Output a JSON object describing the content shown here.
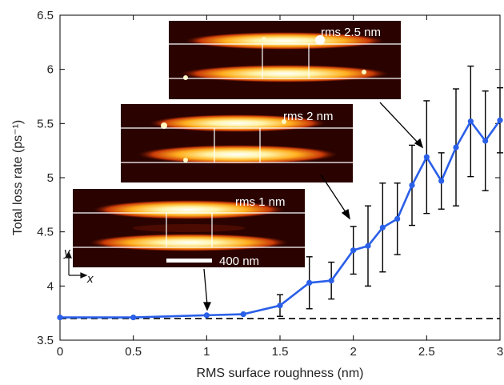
{
  "chart_data": {
    "type": "line",
    "xlabel": "RMS surface roughness (nm)",
    "ylabel": "Total loss rate (ps⁻¹)",
    "xlim": [
      0,
      3
    ],
    "ylim": [
      3.5,
      6.5
    ],
    "xticks": [
      "0",
      "0.5",
      "1",
      "1.5",
      "2",
      "2.5",
      "3"
    ],
    "yticks": [
      "3.5",
      "4",
      "4.5",
      "5",
      "5.5",
      "6",
      "6.5"
    ],
    "series": [
      {
        "color": "#2a5fe8",
        "x": [
          0,
          0.5,
          1.0,
          1.25,
          1.5,
          1.7,
          1.85,
          2.0,
          2.1,
          2.2,
          2.3,
          2.4,
          2.5,
          2.6,
          2.7,
          2.8,
          2.9,
          3.0
        ],
        "y": [
          3.71,
          3.71,
          3.73,
          3.74,
          3.82,
          4.03,
          4.05,
          4.33,
          4.37,
          4.54,
          4.62,
          4.93,
          5.19,
          4.97,
          5.28,
          5.52,
          5.34,
          5.53
        ],
        "error": [
          0,
          0,
          0,
          0,
          0.1,
          0.24,
          0.17,
          0.22,
          0.37,
          0.41,
          0.33,
          0.37,
          0.52,
          0.26,
          0.54,
          0.51,
          0.46,
          0.3
        ]
      }
    ],
    "reference_line": {
      "y": 3.7,
      "style": "dashed",
      "color": "#000000"
    },
    "insets": [
      {
        "label": "rms 2.5 nm"
      },
      {
        "label": "rms 2 nm"
      },
      {
        "label": "rms 1 nm",
        "scale_bar": "400 nm"
      }
    ],
    "axes_indicator": {
      "x": "x",
      "y": "y"
    }
  }
}
